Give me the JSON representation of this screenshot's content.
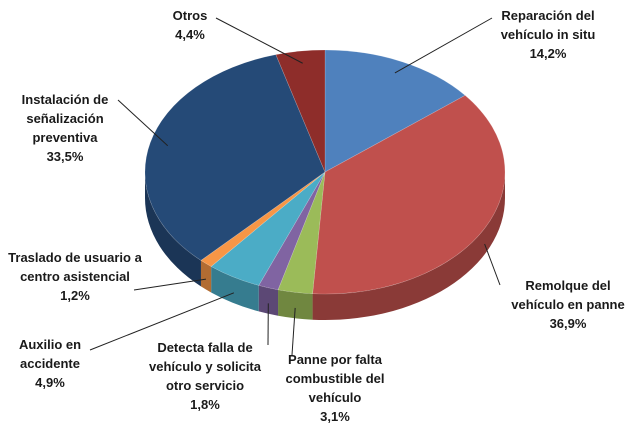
{
  "chart_data": {
    "type": "pie",
    "categories": [
      "Reparación del vehículo in situ",
      "Remolque del vehículo en panne",
      "Panne por falta combustible del vehículo",
      "Detecta falla de vehículo y solicita otro servicio",
      "Auxilio en accidente",
      "Traslado de usuario a centro asistencial",
      "Instalación de señalización preventiva",
      "Otros"
    ],
    "values": [
      14.2,
      36.9,
      3.1,
      1.8,
      4.9,
      1.2,
      33.5,
      4.4
    ],
    "value_labels": [
      "14,2%",
      "36,9%",
      "3,1%",
      "1,8%",
      "4,9%",
      "1,2%",
      "33,5%",
      "4,4%"
    ],
    "colors": [
      "#4f81bd",
      "#c0504d",
      "#9bbb59",
      "#8064a2",
      "#4bacc6",
      "#f79646",
      "#254a77",
      "#8e2d2a"
    ]
  }
}
